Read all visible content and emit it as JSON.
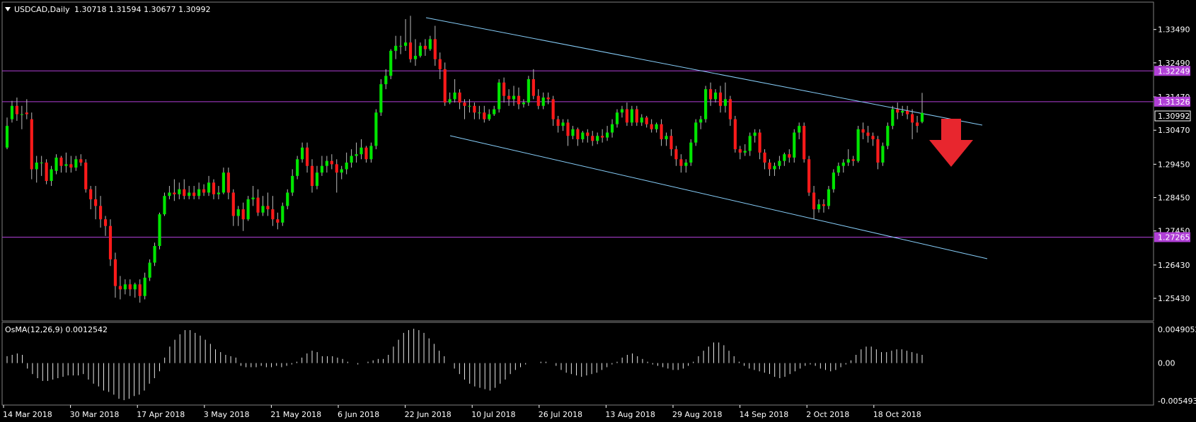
{
  "header": {
    "symbol_timeframe": "USDCAD,Daily",
    "ohlc": "1.30718 1.31594 1.30677 1.30992"
  },
  "price_scale": {
    "ticks": [
      "1.33490",
      "1.32490",
      "1.31470",
      "1.30470",
      "1.29450",
      "1.28450",
      "1.27450",
      "1.26430",
      "1.25430"
    ],
    "current_price_label": "1.30992"
  },
  "horizontal_levels": [
    {
      "label": "1.32249",
      "color": "#b03fd6"
    },
    {
      "label": "1.31326",
      "color": "#b03fd6"
    },
    {
      "label": "1.27265",
      "color": "#b03fd6"
    }
  ],
  "indicator": {
    "title": "OsMA(12,26,9) 0.0012542",
    "scale_ticks": [
      "0.0049052",
      "0.00",
      "-0.005493"
    ]
  },
  "time_axis": {
    "labels": [
      "14 Mar 2018",
      "30 Mar 2018",
      "17 Apr 2018",
      "3 May 2018",
      "21 May 2018",
      "6 Jun 2018",
      "22 Jun 2018",
      "10 Jul 2018",
      "26 Jul 2018",
      "13 Aug 2018",
      "29 Aug 2018",
      "14 Sep 2018",
      "2 Oct 2018",
      "18 Oct 2018"
    ]
  },
  "colors": {
    "background": "#000000",
    "bull_candle": "#00e600",
    "bear_candle": "#ff1a1a",
    "channel_line": "#87cefa",
    "level_line": "#b03fd6",
    "arrow": "#e8262e",
    "grid_border": "#808080"
  },
  "annotation": {
    "arrow_icon": "down-arrow-icon"
  },
  "chart_data": {
    "type": "candlestick",
    "symbol": "USDCAD",
    "timeframe": "Daily",
    "ylim": [
      1.2505,
      1.3395
    ],
    "candles": [
      [
        1.2995,
        1.3085,
        1.306,
        1.299
      ],
      [
        1.308,
        1.3135,
        1.312,
        1.307
      ],
      [
        1.312,
        1.3145,
        1.3095,
        1.3075
      ],
      [
        1.3095,
        1.312,
        1.3095,
        1.305
      ],
      [
        1.31,
        1.314,
        1.3095,
        1.308
      ],
      [
        1.308,
        1.31,
        1.293,
        1.29
      ],
      [
        1.293,
        1.297,
        1.295,
        1.289
      ],
      [
        1.295,
        1.297,
        1.295,
        1.291
      ],
      [
        1.295,
        1.296,
        1.2895,
        1.2885
      ],
      [
        1.2895,
        1.294,
        1.293,
        1.288
      ],
      [
        1.2925,
        1.2975,
        1.2965,
        1.2915
      ],
      [
        1.2965,
        1.297,
        1.294,
        1.292
      ],
      [
        1.294,
        1.298,
        1.2945,
        1.292
      ],
      [
        1.2945,
        1.297,
        1.2935,
        1.292
      ],
      [
        1.2935,
        1.297,
        1.296,
        1.2925
      ],
      [
        1.296,
        1.2975,
        1.295,
        1.294
      ],
      [
        1.295,
        1.296,
        1.287,
        1.286
      ],
      [
        1.287,
        1.288,
        1.284,
        1.281
      ],
      [
        1.284,
        1.288,
        1.282,
        1.278
      ],
      [
        1.282,
        1.285,
        1.278,
        1.2755
      ],
      [
        1.278,
        1.279,
        1.276,
        1.273
      ],
      [
        1.276,
        1.278,
        1.266,
        1.264
      ],
      [
        1.266,
        1.268,
        1.258,
        1.2545
      ],
      [
        1.258,
        1.261,
        1.257,
        1.254
      ],
      [
        1.257,
        1.26,
        1.2585,
        1.2555
      ],
      [
        1.2585,
        1.26,
        1.257,
        1.255
      ],
      [
        1.257,
        1.259,
        1.2585,
        1.2545
      ],
      [
        1.2585,
        1.26,
        1.255,
        1.253
      ],
      [
        1.255,
        1.262,
        1.2605,
        1.254
      ],
      [
        1.2605,
        1.266,
        1.265,
        1.2595
      ],
      [
        1.265,
        1.271,
        1.27,
        1.264
      ],
      [
        1.27,
        1.28,
        1.2795,
        1.269
      ],
      [
        1.2795,
        1.286,
        1.285,
        1.279
      ],
      [
        1.285,
        1.288,
        1.286,
        1.284
      ],
      [
        1.286,
        1.29,
        1.2855,
        1.2835
      ],
      [
        1.2855,
        1.289,
        1.287,
        1.284
      ],
      [
        1.287,
        1.29,
        1.285,
        1.284
      ],
      [
        1.285,
        1.288,
        1.286,
        1.284
      ],
      [
        1.286,
        1.288,
        1.285,
        1.284
      ],
      [
        1.285,
        1.289,
        1.287,
        1.284
      ],
      [
        1.287,
        1.2885,
        1.286,
        1.285
      ],
      [
        1.286,
        1.291,
        1.289,
        1.285
      ],
      [
        1.289,
        1.29,
        1.2855,
        1.284
      ],
      [
        1.2855,
        1.288,
        1.286,
        1.284
      ],
      [
        1.286,
        1.2935,
        1.292,
        1.2855
      ],
      [
        1.292,
        1.2935,
        1.286,
        1.284
      ],
      [
        1.286,
        1.287,
        1.279,
        1.276
      ],
      [
        1.279,
        1.282,
        1.281,
        1.276
      ],
      [
        1.281,
        1.283,
        1.278,
        1.2745
      ],
      [
        1.278,
        1.285,
        1.284,
        1.2775
      ],
      [
        1.284,
        1.288,
        1.2845,
        1.282
      ],
      [
        1.2845,
        1.287,
        1.28,
        1.279
      ],
      [
        1.28,
        1.285,
        1.282,
        1.279
      ],
      [
        1.282,
        1.286,
        1.281,
        1.279
      ],
      [
        1.281,
        1.285,
        1.278,
        1.276
      ],
      [
        1.278,
        1.28,
        1.277,
        1.275
      ],
      [
        1.277,
        1.283,
        1.282,
        1.276
      ],
      [
        1.282,
        1.287,
        1.286,
        1.281
      ],
      [
        1.286,
        1.293,
        1.291,
        1.285
      ],
      [
        1.291,
        1.297,
        1.296,
        1.29
      ],
      [
        1.296,
        1.301,
        1.2995,
        1.295
      ],
      [
        1.2995,
        1.301,
        1.294,
        1.292
      ],
      [
        1.294,
        1.296,
        1.288,
        1.286
      ],
      [
        1.288,
        1.294,
        1.292,
        1.287
      ],
      [
        1.292,
        1.297,
        1.294,
        1.291
      ],
      [
        1.294,
        1.297,
        1.2955,
        1.292
      ],
      [
        1.2955,
        1.2975,
        1.2945,
        1.293
      ],
      [
        1.2945,
        1.296,
        1.292,
        1.286
      ],
      [
        1.292,
        1.294,
        1.293,
        1.29
      ],
      [
        1.293,
        1.298,
        1.295,
        1.2915
      ],
      [
        1.295,
        1.299,
        1.297,
        1.2935
      ],
      [
        1.297,
        1.301,
        1.2975,
        1.295
      ],
      [
        1.2975,
        1.302,
        1.2995,
        1.296
      ],
      [
        1.2995,
        1.3,
        1.296,
        1.295
      ],
      [
        1.296,
        1.301,
        1.3,
        1.295
      ],
      [
        1.3,
        1.311,
        1.31,
        1.299
      ],
      [
        1.31,
        1.32,
        1.3185,
        1.309
      ],
      [
        1.3185,
        1.323,
        1.321,
        1.317
      ],
      [
        1.321,
        1.329,
        1.3285,
        1.32
      ],
      [
        1.3285,
        1.333,
        1.33,
        1.326
      ],
      [
        1.33,
        1.333,
        1.33,
        1.3275
      ],
      [
        1.33,
        1.338,
        1.331,
        1.3285
      ],
      [
        1.331,
        1.339,
        1.326,
        1.325
      ],
      [
        1.326,
        1.332,
        1.327,
        1.324
      ],
      [
        1.327,
        1.331,
        1.33,
        1.3265
      ],
      [
        1.33,
        1.332,
        1.329,
        1.327
      ],
      [
        1.329,
        1.333,
        1.332,
        1.3285
      ],
      [
        1.332,
        1.336,
        1.326,
        1.324
      ],
      [
        1.326,
        1.328,
        1.323,
        1.32
      ],
      [
        1.323,
        1.325,
        1.313,
        1.312
      ],
      [
        1.313,
        1.316,
        1.314,
        1.3125
      ],
      [
        1.314,
        1.32,
        1.316,
        1.313
      ],
      [
        1.316,
        1.317,
        1.313,
        1.311
      ],
      [
        1.313,
        1.314,
        1.312,
        1.308
      ],
      [
        1.312,
        1.314,
        1.312,
        1.31
      ],
      [
        1.312,
        1.313,
        1.31,
        1.308
      ],
      [
        1.31,
        1.312,
        1.31,
        1.308
      ],
      [
        1.31,
        1.312,
        1.308,
        1.307
      ],
      [
        1.308,
        1.311,
        1.3095,
        1.3075
      ],
      [
        1.3095,
        1.312,
        1.311,
        1.309
      ],
      [
        1.311,
        1.32,
        1.319,
        1.31
      ],
      [
        1.319,
        1.3205,
        1.315,
        1.313
      ],
      [
        1.315,
        1.317,
        1.314,
        1.312
      ],
      [
        1.314,
        1.318,
        1.315,
        1.312
      ],
      [
        1.315,
        1.3175,
        1.3125,
        1.311
      ],
      [
        1.3125,
        1.314,
        1.313,
        1.3115
      ],
      [
        1.313,
        1.321,
        1.32,
        1.312
      ],
      [
        1.32,
        1.323,
        1.315,
        1.314
      ],
      [
        1.315,
        1.317,
        1.312,
        1.311
      ],
      [
        1.312,
        1.316,
        1.3145,
        1.311
      ],
      [
        1.3145,
        1.316,
        1.314,
        1.3125
      ],
      [
        1.314,
        1.315,
        1.308,
        1.306
      ],
      [
        1.308,
        1.309,
        1.306,
        1.304
      ],
      [
        1.306,
        1.308,
        1.307,
        1.3045
      ],
      [
        1.307,
        1.308,
        1.303,
        1.3
      ],
      [
        1.303,
        1.306,
        1.305,
        1.302
      ],
      [
        1.305,
        1.3055,
        1.302,
        1.3
      ],
      [
        1.302,
        1.3045,
        1.304,
        1.301
      ],
      [
        1.304,
        1.305,
        1.303,
        1.301
      ],
      [
        1.303,
        1.3045,
        1.3015,
        1.3
      ],
      [
        1.3015,
        1.304,
        1.303,
        1.3005
      ],
      [
        1.303,
        1.305,
        1.3025,
        1.301
      ],
      [
        1.3025,
        1.306,
        1.304,
        1.3015
      ],
      [
        1.304,
        1.308,
        1.3065,
        1.3025
      ],
      [
        1.3065,
        1.311,
        1.31,
        1.3055
      ],
      [
        1.31,
        1.312,
        1.311,
        1.3085
      ],
      [
        1.311,
        1.313,
        1.307,
        1.306
      ],
      [
        1.307,
        1.312,
        1.311,
        1.306
      ],
      [
        1.311,
        1.312,
        1.307,
        1.306
      ],
      [
        1.307,
        1.3095,
        1.3085,
        1.306
      ],
      [
        1.3085,
        1.309,
        1.3065,
        1.3055
      ],
      [
        1.3065,
        1.308,
        1.305,
        1.304
      ],
      [
        1.305,
        1.307,
        1.3065,
        1.304
      ],
      [
        1.3065,
        1.308,
        1.302,
        1.3
      ],
      [
        1.302,
        1.304,
        1.303,
        1.3
      ],
      [
        1.303,
        1.305,
        1.299,
        1.297
      ],
      [
        1.299,
        1.3,
        1.296,
        1.294
      ],
      [
        1.296,
        1.2975,
        1.294,
        1.292
      ],
      [
        1.294,
        1.296,
        1.295,
        1.292
      ],
      [
        1.295,
        1.302,
        1.301,
        1.294
      ],
      [
        1.301,
        1.308,
        1.307,
        1.3
      ],
      [
        1.307,
        1.309,
        1.308,
        1.305
      ],
      [
        1.308,
        1.318,
        1.317,
        1.307
      ],
      [
        1.317,
        1.319,
        1.314,
        1.312
      ],
      [
        1.314,
        1.317,
        1.316,
        1.313
      ],
      [
        1.316,
        1.318,
        1.312,
        1.31
      ],
      [
        1.312,
        1.319,
        1.314,
        1.31
      ],
      [
        1.314,
        1.315,
        1.308,
        1.306
      ],
      [
        1.308,
        1.309,
        1.299,
        1.298
      ],
      [
        1.299,
        1.3,
        1.298,
        1.296
      ],
      [
        1.298,
        1.3005,
        1.2985,
        1.297
      ],
      [
        1.2985,
        1.304,
        1.303,
        1.297
      ],
      [
        1.303,
        1.305,
        1.304,
        1.301
      ],
      [
        1.304,
        1.305,
        1.298,
        1.296
      ],
      [
        1.298,
        1.299,
        1.295,
        1.293
      ],
      [
        1.295,
        1.296,
        1.293,
        1.291
      ],
      [
        1.293,
        1.295,
        1.294,
        1.291
      ],
      [
        1.294,
        1.297,
        1.2955,
        1.293
      ],
      [
        1.2955,
        1.298,
        1.2975,
        1.294
      ],
      [
        1.2975,
        1.299,
        1.2965,
        1.295
      ],
      [
        1.2965,
        1.305,
        1.304,
        1.295
      ],
      [
        1.304,
        1.307,
        1.306,
        1.302
      ],
      [
        1.306,
        1.307,
        1.296,
        1.295
      ],
      [
        1.296,
        1.297,
        1.286,
        1.285
      ],
      [
        1.286,
        1.288,
        1.281,
        1.278
      ],
      [
        1.281,
        1.284,
        1.2825,
        1.28
      ],
      [
        1.2825,
        1.284,
        1.282,
        1.28
      ],
      [
        1.282,
        1.288,
        1.287,
        1.281
      ],
      [
        1.287,
        1.293,
        1.292,
        1.286
      ],
      [
        1.292,
        1.295,
        1.294,
        1.291
      ],
      [
        1.294,
        1.296,
        1.295,
        1.292
      ],
      [
        1.295,
        1.299,
        1.296,
        1.294
      ],
      [
        1.296,
        1.297,
        1.2955,
        1.294
      ],
      [
        1.2955,
        1.306,
        1.305,
        1.295
      ],
      [
        1.305,
        1.307,
        1.304,
        1.302
      ],
      [
        1.304,
        1.306,
        1.303,
        1.301
      ],
      [
        1.303,
        1.304,
        1.302,
        1.3
      ],
      [
        1.302,
        1.303,
        1.295,
        1.293
      ],
      [
        1.295,
        1.301,
        1.3,
        1.294
      ],
      [
        1.3,
        1.307,
        1.306,
        1.299
      ],
      [
        1.306,
        1.312,
        1.311,
        1.305
      ],
      [
        1.311,
        1.313,
        1.31,
        1.308
      ],
      [
        1.31,
        1.312,
        1.3105,
        1.309
      ],
      [
        1.3105,
        1.312,
        1.3095,
        1.308
      ],
      [
        1.3095,
        1.311,
        1.307,
        1.302
      ],
      [
        1.307,
        1.309,
        1.306,
        1.304
      ],
      [
        1.3072,
        1.3159,
        1.3099,
        1.3068
      ]
    ],
    "osma_values": [
      0.001,
      0.0012,
      0.0014,
      0.0012,
      -0.0008,
      -0.0016,
      -0.0022,
      -0.0026,
      -0.0026,
      -0.0024,
      -0.0022,
      -0.002,
      -0.0018,
      -0.0018,
      -0.0018,
      -0.0016,
      -0.0024,
      -0.003,
      -0.0034,
      -0.004,
      -0.0042,
      -0.0046,
      -0.0052,
      -0.0054,
      -0.0052,
      -0.0048,
      -0.0046,
      -0.004,
      -0.003,
      -0.0022,
      -0.0012,
      0.0008,
      0.0024,
      0.0034,
      0.0042,
      0.0048,
      0.0048,
      0.0044,
      0.004,
      0.0034,
      0.0028,
      0.002,
      0.0016,
      0.0012,
      0.001,
      0.0008,
      -0.0004,
      -0.0006,
      -0.0006,
      -0.0006,
      -0.0004,
      -0.0006,
      -0.0006,
      -0.0004,
      -0.0006,
      -0.0004,
      -0.0002,
      0.0002,
      0.0008,
      0.0014,
      0.0018,
      0.0016,
      0.001,
      0.001,
      0.001,
      0.0008,
      0.0006,
      0.0002,
      0.0,
      -0.0002,
      0.0,
      0.0002,
      0.0004,
      0.0006,
      0.0006,
      0.0012,
      0.0024,
      0.0034,
      0.0044,
      0.0048,
      0.005,
      0.0048,
      0.0044,
      0.0036,
      0.0028,
      0.0018,
      0.001,
      0.0,
      -0.0008,
      -0.0016,
      -0.0024,
      -0.003,
      -0.0034,
      -0.0036,
      -0.0038,
      -0.004,
      -0.0036,
      -0.003,
      -0.0024,
      -0.0016,
      -0.001,
      -0.0006,
      -0.0002,
      0.0,
      0.0,
      0.0002,
      0.0002,
      0.0,
      -0.0004,
      -0.001,
      -0.0014,
      -0.0016,
      -0.0018,
      -0.002,
      -0.0018,
      -0.0016,
      -0.0014,
      -0.001,
      -0.0006,
      -0.0002,
      0.0002,
      0.0008,
      0.0012,
      0.0014,
      0.001,
      0.0006,
      0.0002,
      -0.0002,
      -0.0004,
      -0.0006,
      -0.0008,
      -0.001,
      -0.001,
      -0.0008,
      -0.0004,
      0.0002,
      0.001,
      0.0018,
      0.0024,
      0.003,
      0.003,
      0.0026,
      0.0018,
      0.001,
      0.0002,
      -0.0004,
      -0.0008,
      -0.001,
      -0.0012,
      -0.0014,
      -0.0016,
      -0.002,
      -0.0022,
      -0.002,
      -0.0016,
      -0.0012,
      -0.0008,
      -0.0004,
      -0.0002,
      -0.0004,
      -0.0008,
      -0.001,
      -0.0012,
      -0.001,
      -0.0006,
      -0.0002,
      0.0004,
      0.0012,
      0.002,
      0.0024,
      0.0024,
      0.002,
      0.0016,
      0.0016,
      0.0018,
      0.002,
      0.002,
      0.0018,
      0.0016,
      0.0014,
      0.0012
    ],
    "osma_ylim": [
      -0.005493,
      0.0049052
    ]
  }
}
